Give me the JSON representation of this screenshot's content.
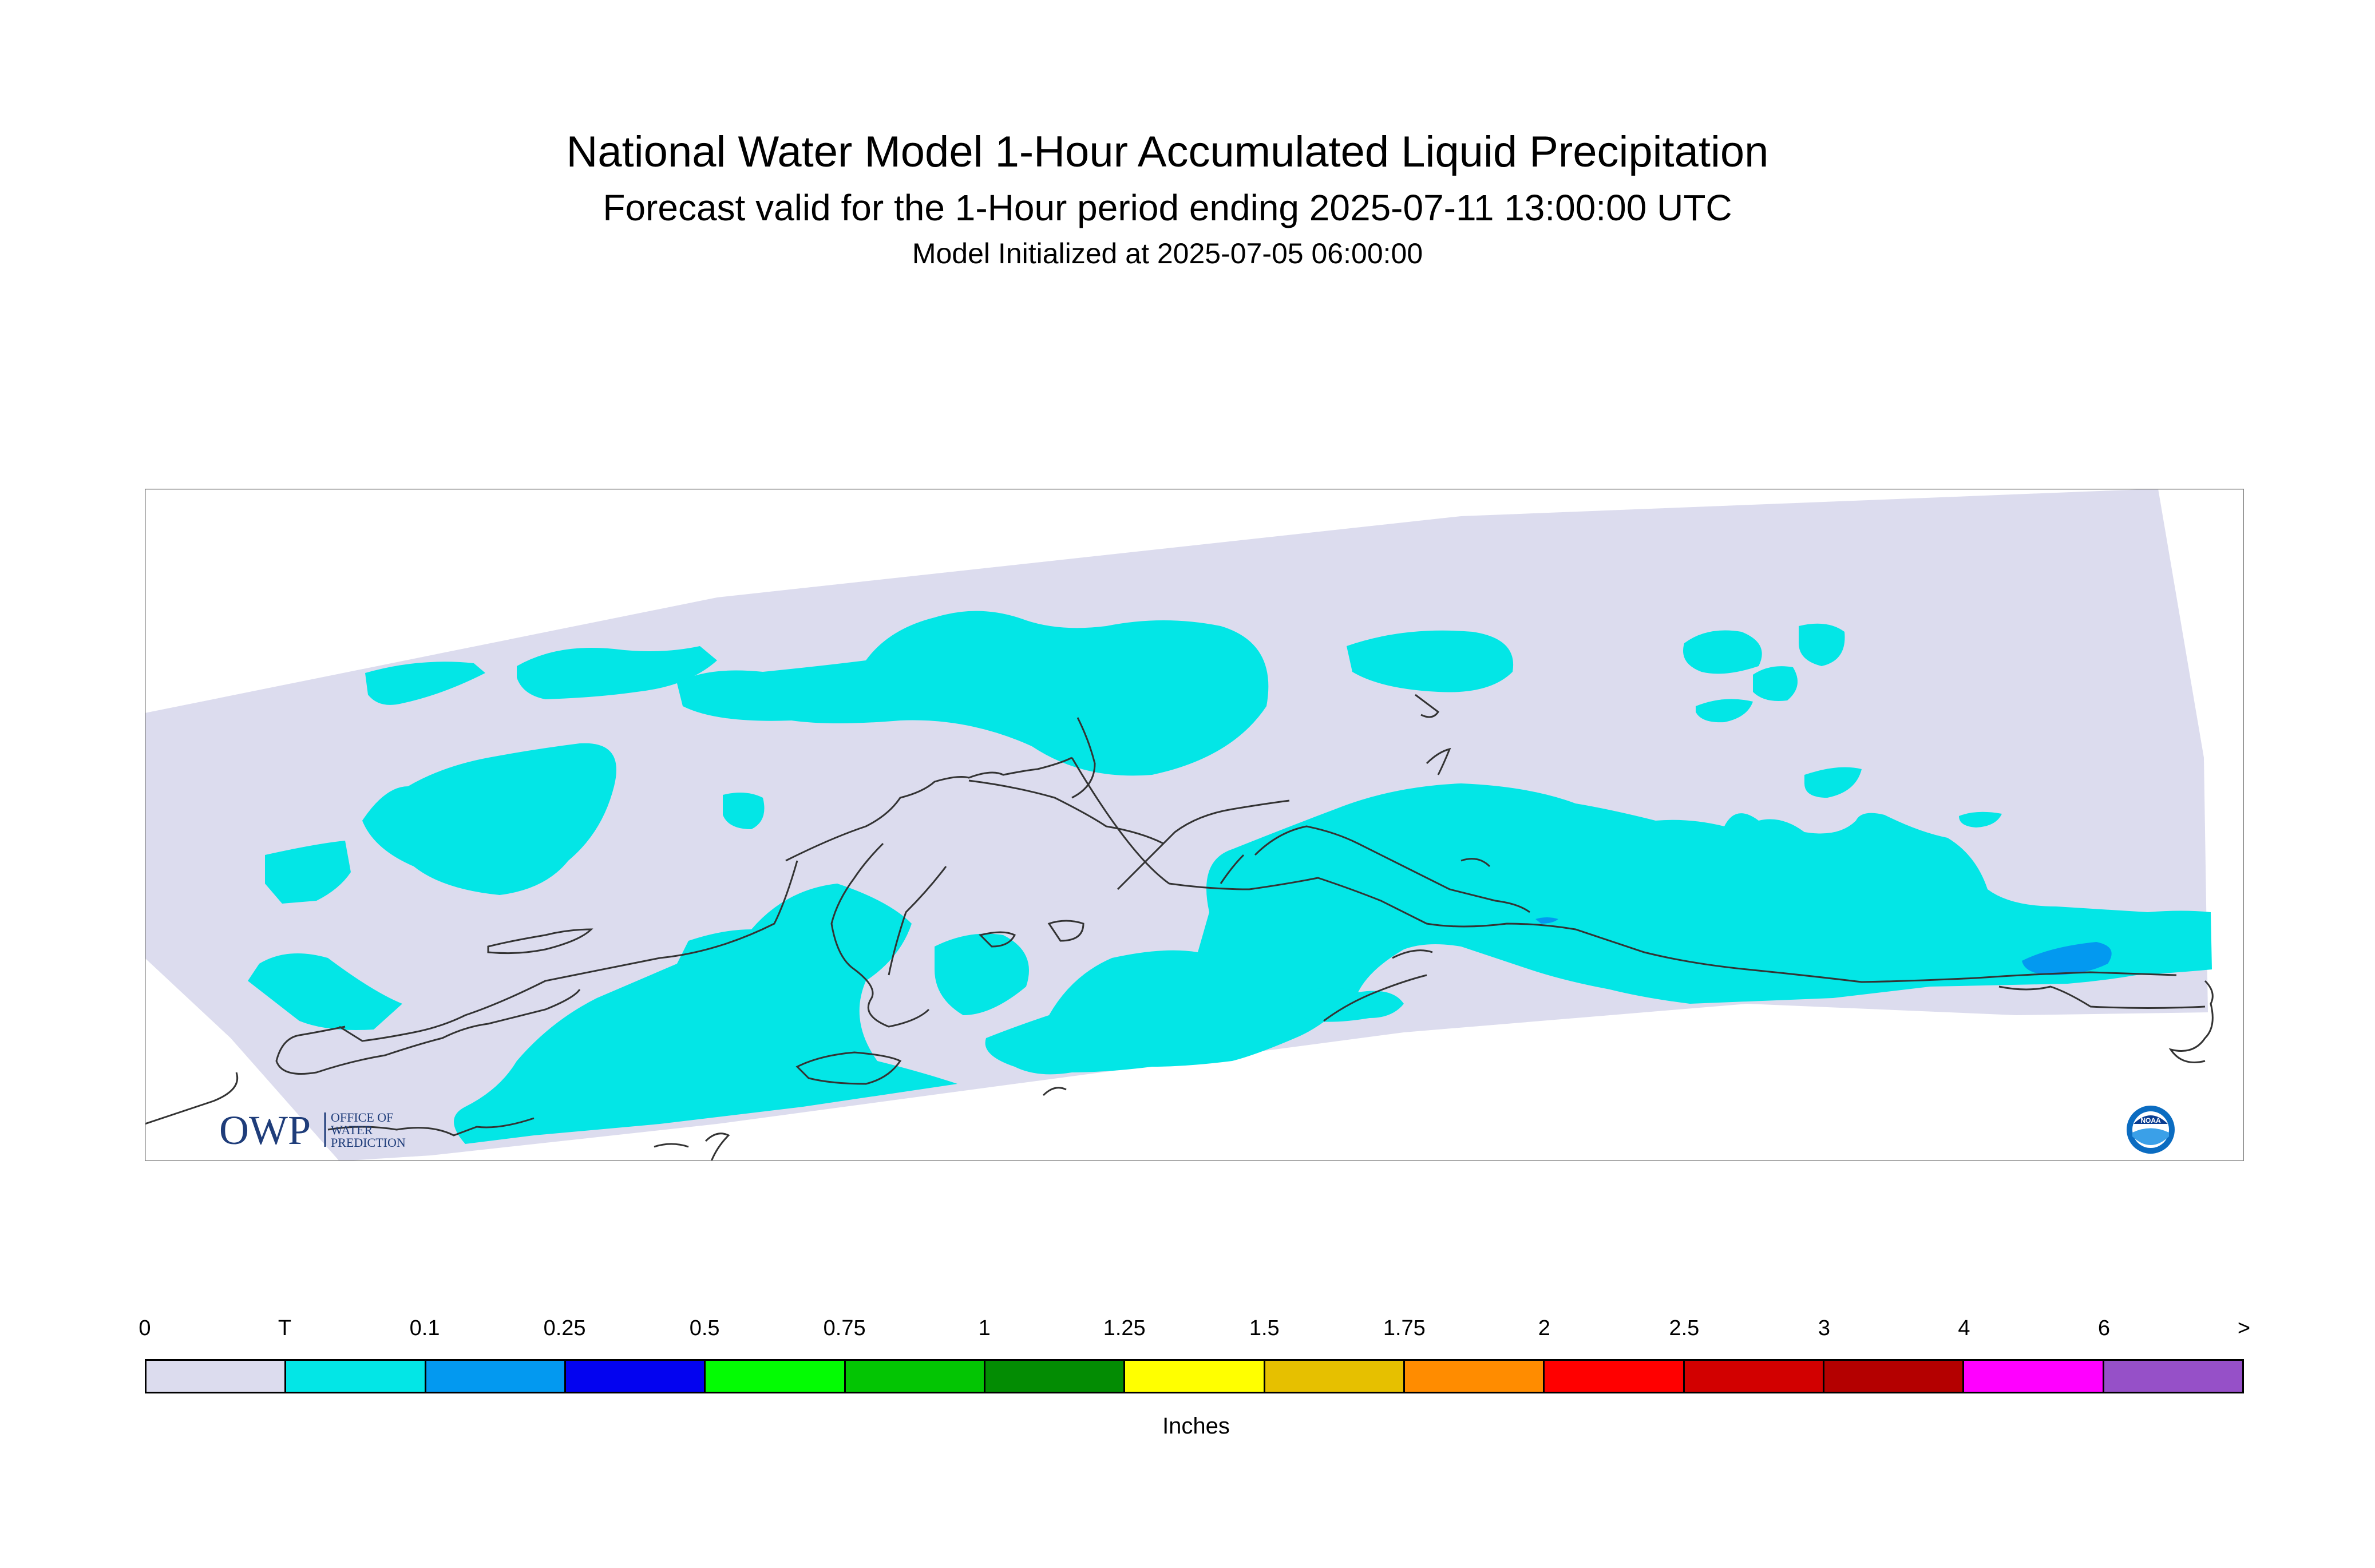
{
  "header": {
    "title": "National Water Model 1-Hour Accumulated Liquid Precipitation",
    "subtitle": "Forecast valid for the 1-Hour period ending 2025-07-11 13:00:00 UTC",
    "init_line": "Model Initialized at 2025-07-05 06:00:00"
  },
  "logos": {
    "owp_mark": "OWP",
    "owp_text": [
      "OFFICE OF",
      "WATER",
      "PREDICTION"
    ],
    "noaa_text": "NOAA"
  },
  "legend": {
    "labels": [
      "0",
      "T",
      "0.1",
      "0.25",
      "0.5",
      "0.75",
      "1",
      "1.25",
      "1.5",
      "1.75",
      "2",
      "2.5",
      "3",
      "4",
      "6",
      ">"
    ],
    "colors": [
      "#dcdcee",
      "#03e6e6",
      "#0399f0",
      "#0303f0",
      "#03fc03",
      "#03c503",
      "#038c03",
      "#ffff00",
      "#e6c000",
      "#ff8c00",
      "#ff0000",
      "#d20000",
      "#b40000",
      "#ff00ff",
      "#9650c8"
    ],
    "units": "Inches"
  },
  "map_colors": {
    "no_precip": "#dcdcee",
    "trace": "#03e6e6",
    "light": "#0399f0",
    "coastline": "#333333",
    "frame": "#888888"
  }
}
